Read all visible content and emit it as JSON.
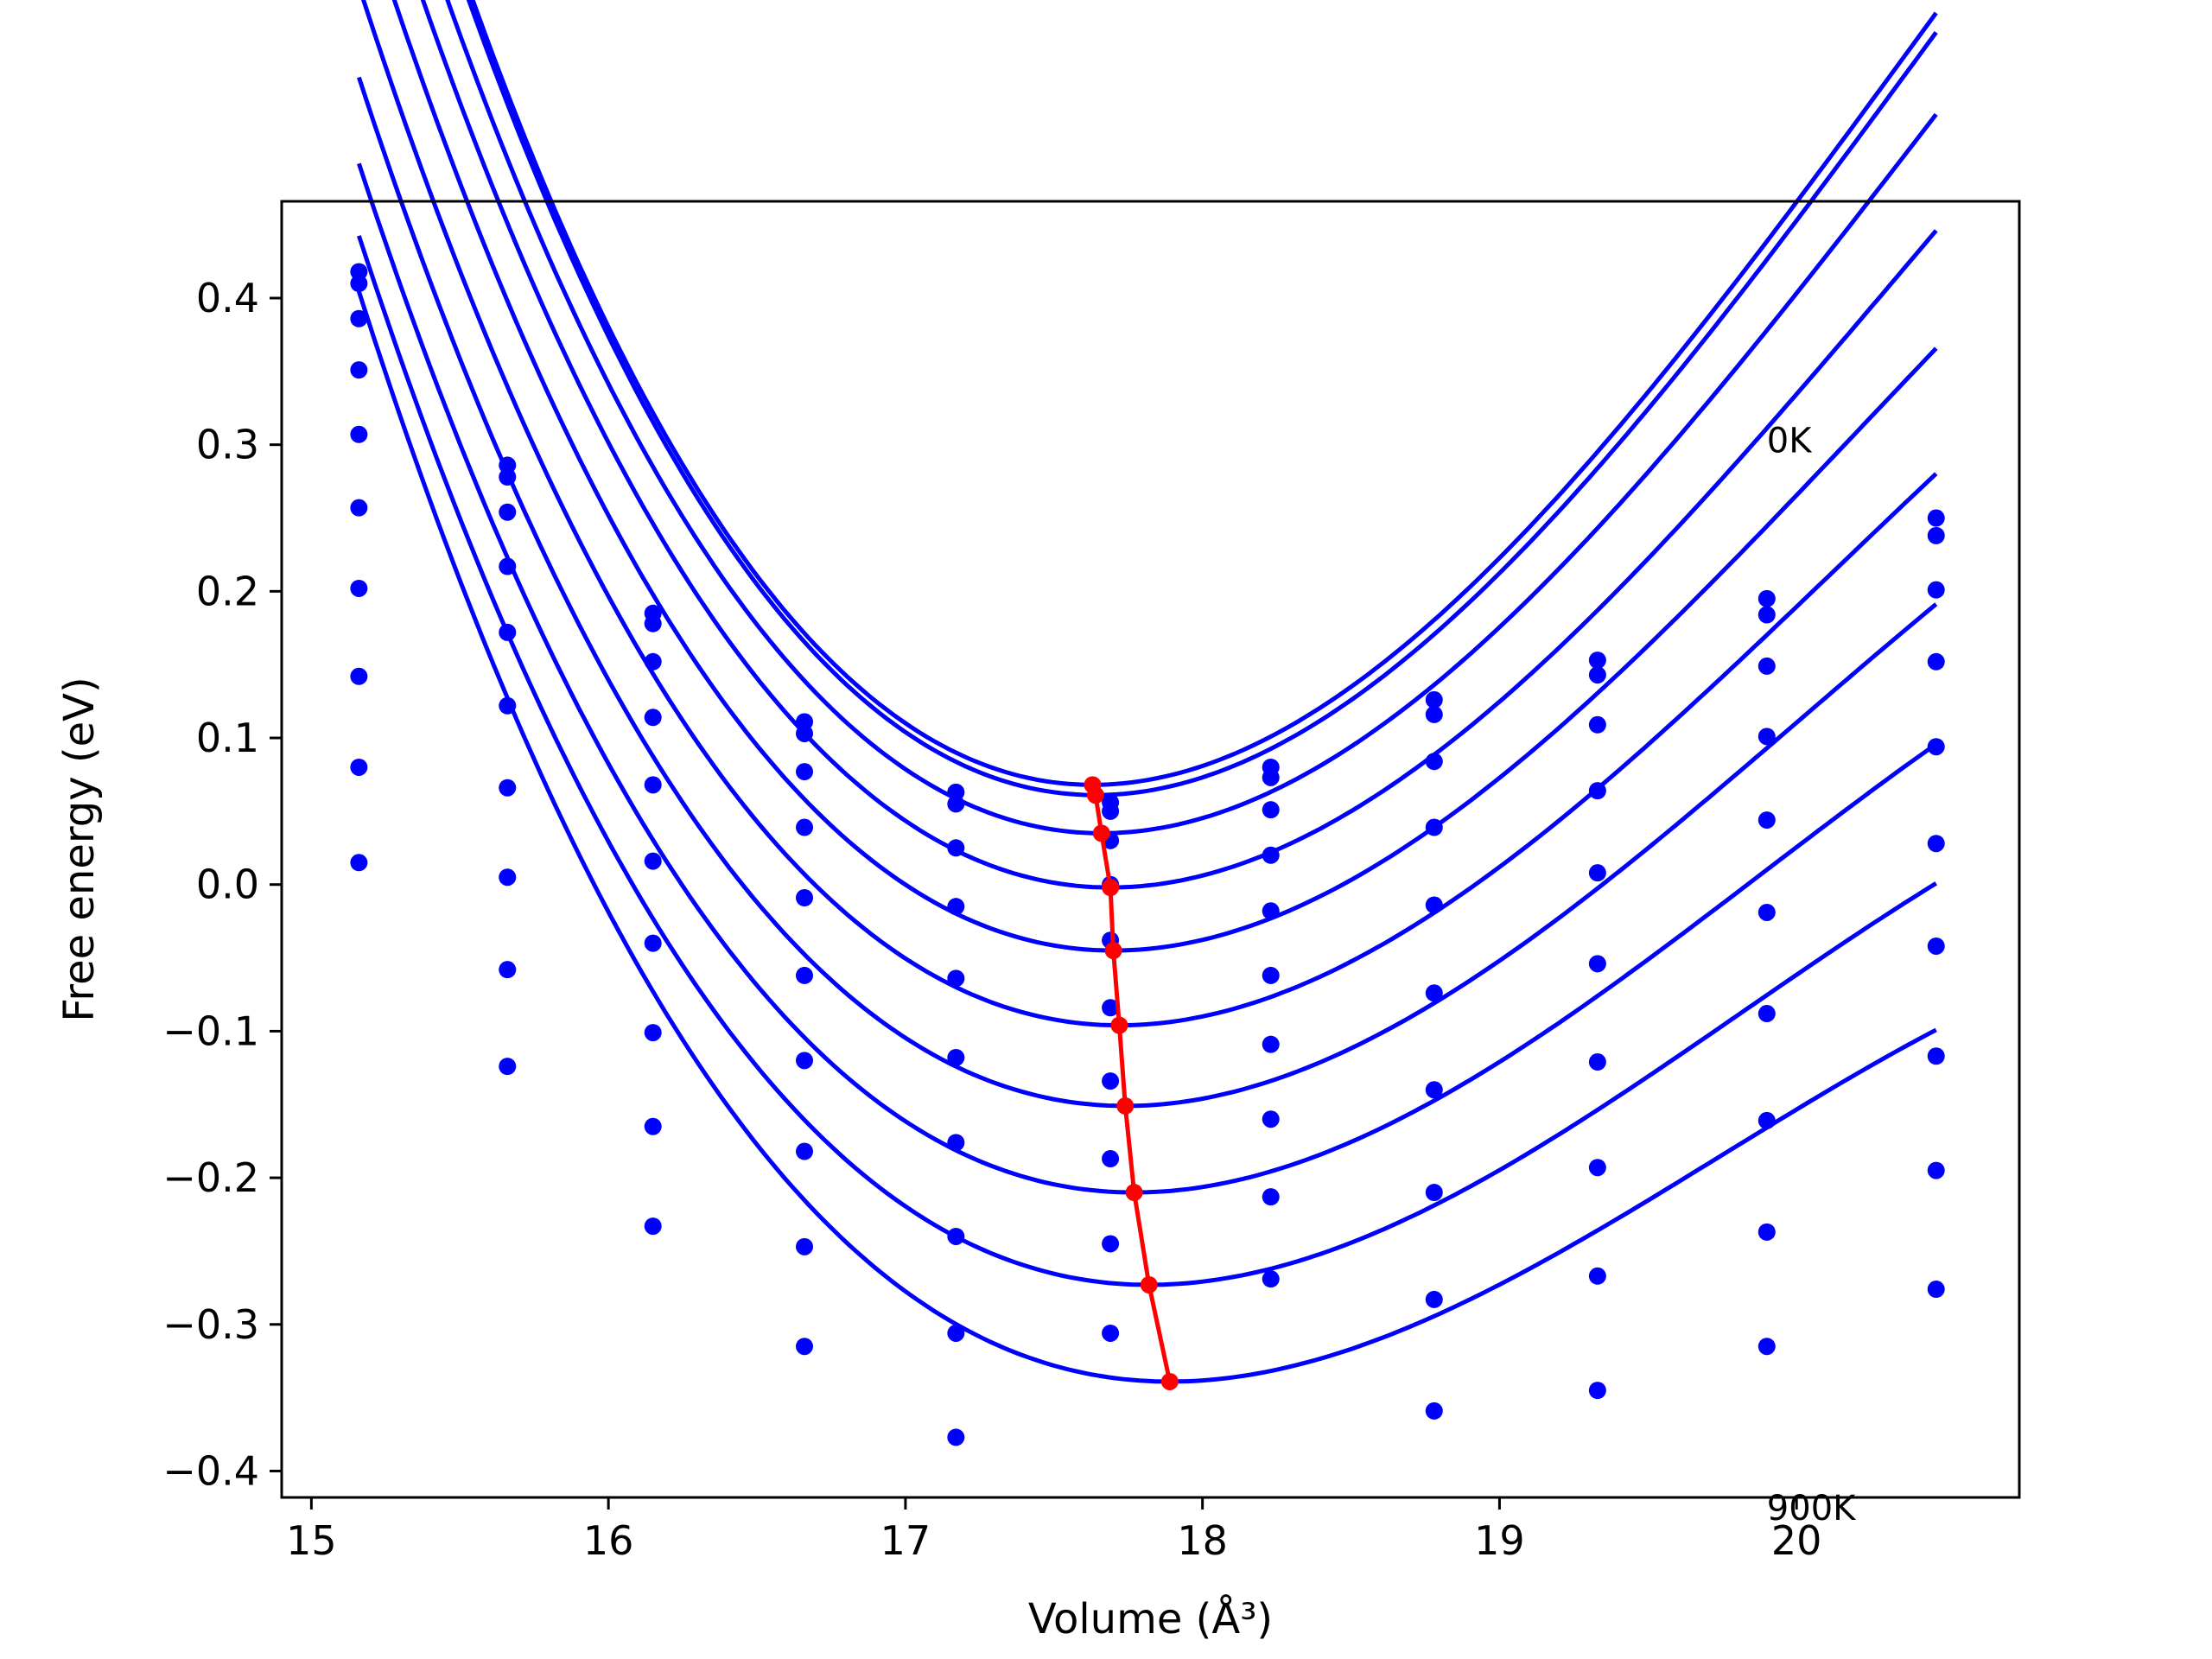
{
  "chart_data": {
    "type": "scatter",
    "xlabel": "Volume (Å³)",
    "ylabel": "Free energy (eV)",
    "xlim": [
      14.9,
      20.75
    ],
    "ylim": [
      -0.418,
      0.466
    ],
    "x_ticks": [
      15,
      16,
      17,
      18,
      19,
      20
    ],
    "x_tick_labels": [
      "15",
      "16",
      "17",
      "18",
      "19",
      "20"
    ],
    "y_ticks": [
      0.4,
      0.3,
      0.2,
      0.1,
      0.0,
      -0.1,
      -0.2,
      -0.3,
      -0.4
    ],
    "y_tick_labels": [
      "0.4",
      "0.3",
      "0.2",
      "0.1",
      "0.0",
      "−0.1",
      "−0.2",
      "−0.3",
      "−0.4"
    ],
    "grid": false,
    "annotations": [
      {
        "text": "0K",
        "x": 19.9,
        "y": 0.303
      },
      {
        "text": "900K",
        "x": 19.9,
        "y": -0.425
      }
    ],
    "series_color": "#0000ff",
    "minimum_color": "#ff0000",
    "volumes": [
      15.16,
      15.66,
      16.15,
      16.66,
      17.17,
      17.69,
      18.23,
      18.78,
      19.33,
      19.9,
      20.47
    ],
    "curve_x_range": [
      15.16,
      20.47
    ],
    "series": [
      {
        "energies": [
          0.418,
          0.286,
          0.185,
          0.111,
          0.063,
          0.056,
          0.08,
          0.126,
          0.153,
          0.195,
          0.25
        ],
        "fit": {
          "v0": 17.63,
          "e0": 0.068,
          "a": 0.0985,
          "b": -0.0117
        }
      },
      {
        "energies": [
          0.41,
          0.278,
          0.178,
          0.103,
          0.055,
          0.05,
          0.073,
          0.116,
          0.143,
          0.184,
          0.238
        ],
        "fit": {
          "v0": 17.64,
          "e0": 0.061,
          "a": 0.0975,
          "b": -0.0115
        }
      },
      {
        "energies": [
          0.386,
          0.254,
          0.152,
          0.077,
          0.025,
          0.03,
          0.051,
          0.084,
          0.109,
          0.149,
          0.201
        ],
        "fit": {
          "v0": 17.66,
          "e0": 0.035,
          "a": 0.093,
          "b": -0.011
        }
      },
      {
        "energies": [
          0.351,
          0.217,
          0.114,
          0.039,
          -0.015,
          0.0,
          0.02,
          0.039,
          0.064,
          0.101,
          0.152
        ],
        "fit": {
          "v0": 17.69,
          "e0": -0.002,
          "a": 0.088,
          "b": -0.0108
        }
      },
      {
        "energies": [
          0.307,
          0.172,
          0.068,
          -0.009,
          -0.064,
          -0.038,
          -0.018,
          -0.014,
          0.008,
          0.044,
          0.094
        ],
        "fit": {
          "v0": 17.7,
          "e0": -0.045,
          "a": 0.084,
          "b": -0.011
        }
      },
      {
        "energies": [
          0.257,
          0.122,
          0.016,
          -0.062,
          -0.118,
          -0.084,
          -0.062,
          -0.074,
          -0.054,
          -0.019,
          0.028
        ],
        "fit": {
          "v0": 17.72,
          "e0": -0.096,
          "a": 0.08,
          "b": -0.011
        }
      },
      {
        "energies": [
          0.202,
          0.066,
          -0.04,
          -0.12,
          -0.176,
          -0.134,
          -0.109,
          -0.14,
          -0.121,
          -0.088,
          -0.042
        ],
        "fit": {
          "v0": 17.74,
          "e0": -0.151,
          "a": 0.0765,
          "b": -0.0112
        }
      },
      {
        "energies": [
          0.142,
          0.005,
          -0.101,
          -0.182,
          -0.24,
          -0.187,
          -0.16,
          -0.21,
          -0.193,
          -0.161,
          -0.117
        ],
        "fit": {
          "v0": 17.77,
          "e0": -0.21,
          "a": 0.073,
          "b": -0.0115
        }
      },
      {
        "energies": [
          0.08,
          -0.058,
          -0.165,
          -0.247,
          -0.306,
          -0.245,
          -0.213,
          -0.283,
          -0.267,
          -0.237,
          -0.195
        ],
        "fit": {
          "v0": 17.82,
          "e0": -0.273,
          "a": 0.07,
          "b": -0.0117
        }
      },
      {
        "energies": [
          0.015,
          -0.124,
          -0.233,
          -0.315,
          -0.377,
          -0.306,
          -0.269,
          -0.359,
          -0.345,
          -0.315,
          -0.276
        ],
        "fit": {
          "v0": 17.89,
          "e0": -0.339,
          "a": 0.067,
          "b": -0.012
        }
      }
    ],
    "minima": [
      {
        "x": 17.63,
        "y": 0.068
      },
      {
        "x": 17.64,
        "y": 0.061
      },
      {
        "x": 17.66,
        "y": 0.035
      },
      {
        "x": 17.69,
        "y": -0.002
      },
      {
        "x": 17.7,
        "y": -0.045
      },
      {
        "x": 17.72,
        "y": -0.096
      },
      {
        "x": 17.74,
        "y": -0.151
      },
      {
        "x": 17.77,
        "y": -0.21
      },
      {
        "x": 17.82,
        "y": -0.273
      },
      {
        "x": 17.89,
        "y": -0.339
      }
    ]
  }
}
